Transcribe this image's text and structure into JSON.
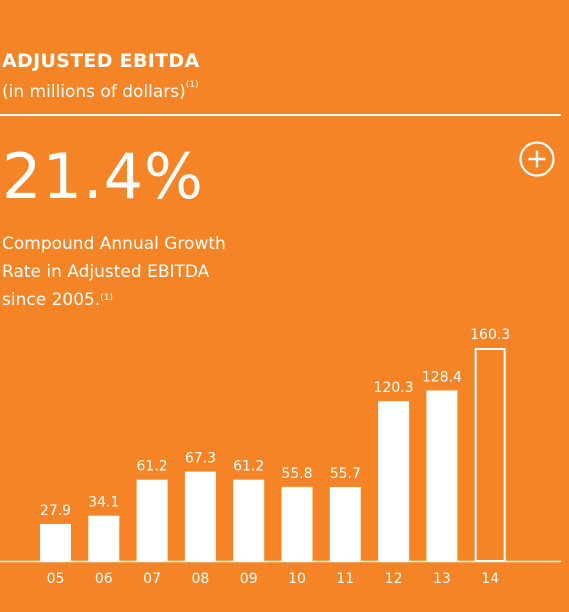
{
  "header": {
    "title": "ADJUSTED EBITDA",
    "subtitle": "(in millions of dollars)",
    "subtitle_note": "(1)"
  },
  "highlight": {
    "value": "21.4%",
    "desc_lines": [
      "Compound Annual Growth",
      "Rate in Adjusted EBITDA",
      "since 2005."
    ],
    "desc_note": "(1)"
  },
  "expand_icon": "plus-circle-icon",
  "colors": {
    "background": "#F58426",
    "bars": "#FFFFFF",
    "highlight_bar_outline": "#FFFFFF"
  },
  "chart_data": {
    "type": "bar",
    "categories": [
      "05",
      "06",
      "07",
      "08",
      "09",
      "10",
      "11",
      "12",
      "13",
      "14"
    ],
    "values": [
      27.9,
      34.1,
      61.2,
      67.3,
      61.2,
      55.8,
      55.7,
      120.3,
      128.4,
      160.3
    ],
    "value_labels": [
      "27.9",
      "34.1",
      "61.2",
      "67.3",
      "61.2",
      "55.8",
      "55.7",
      "120.3",
      "128.4",
      "160.3"
    ],
    "highlighted_category": "14",
    "ylim": [
      0,
      160.3
    ],
    "grid": false,
    "title": "",
    "xlabel": "",
    "ylabel": ""
  }
}
